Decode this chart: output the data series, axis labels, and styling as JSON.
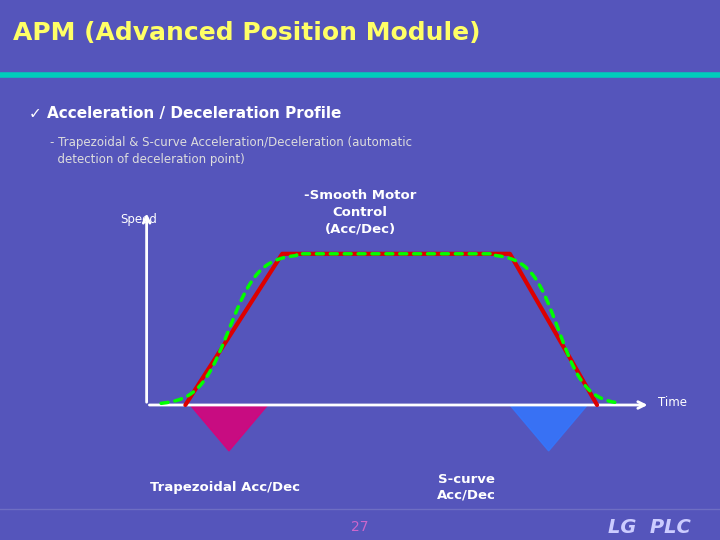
{
  "title": "APM (Advanced Position Module)",
  "title_color": "#FFFF66",
  "title_bg_top": "#0a0a2a",
  "title_bg_bottom": "#1a1a4a",
  "title_bar_color": "#00ccbb",
  "main_bg": "#5555bb",
  "subtitle": "✓ Acceleration / Deceleration Profile",
  "subtitle_color": "#ffffff",
  "desc_line1": "- Trapezoidal & S-curve Acceleration/Deceleration (automatic",
  "desc_line2": "  detection of deceleration point)",
  "desc_color": "#dddddd",
  "speed_label": "Speed",
  "time_label": "Time",
  "trap_label": "Trapezoidal Acc/Dec",
  "scurve_label": "S-curve\nAcc/Dec",
  "smooth_label": "-Smooth Motor\nControl\n(Acc/Dec)",
  "trap_color": "#dd0077",
  "scurve_color": "#3377ff",
  "smooth_color": "#009977",
  "line_red": "#dd0000",
  "line_green_dot": "#00ff00",
  "axis_color": "#ffffff",
  "footer_bg": "#2a2a55",
  "footer_sep_color": "#8888cc",
  "footer_text": "27",
  "footer_brand": "LG  PLC",
  "footer_color": "#cc66cc",
  "footer_brand_color": "#ccccff"
}
